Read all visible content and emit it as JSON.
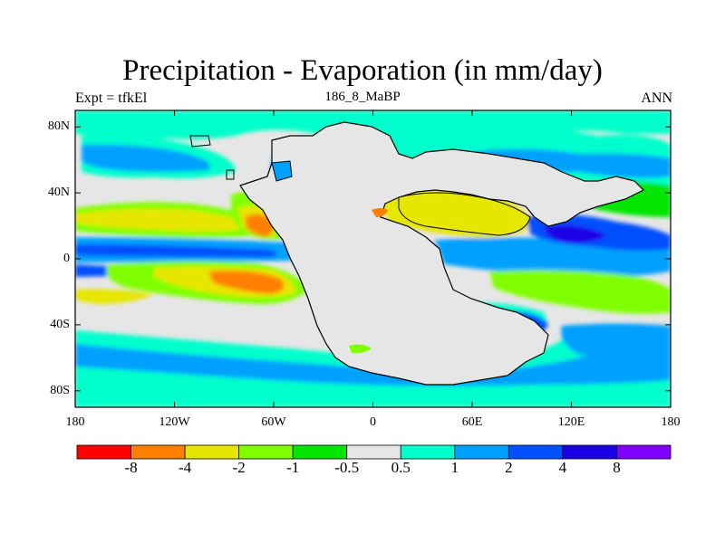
{
  "header": {
    "title": "Precipitation - Evaporation (in mm/day)",
    "left_label": "Expt = tfkEl",
    "center_label": "186_8_MaBP",
    "right_label": "ANN"
  },
  "map": {
    "projection": "cylindrical-equidistant",
    "lon_range": [
      -180,
      180
    ],
    "lat_range": [
      -90,
      90
    ],
    "lat_ticks": [
      {
        "value": 80,
        "label": "80N"
      },
      {
        "value": 40,
        "label": "40N"
      },
      {
        "value": 0,
        "label": "0"
      },
      {
        "value": -40,
        "label": "40S"
      },
      {
        "value": -80,
        "label": "80S"
      }
    ],
    "lon_ticks": [
      {
        "value": -180,
        "label": "180"
      },
      {
        "value": -120,
        "label": "120W"
      },
      {
        "value": -60,
        "label": "60W"
      },
      {
        "value": 0,
        "label": "0"
      },
      {
        "value": 60,
        "label": "60E"
      },
      {
        "value": 120,
        "label": "120E"
      },
      {
        "value": 180,
        "label": "180"
      }
    ],
    "background_color": "#e6e6e6",
    "coastline_color": "#000000"
  },
  "colorbar": {
    "colors": [
      "#ff0000",
      "#ff8000",
      "#e6e600",
      "#80ff00",
      "#00e600",
      "#e6e6e6",
      "#00ffcc",
      "#00a0ff",
      "#0050ff",
      "#1a00e6",
      "#8000ff"
    ],
    "labels": [
      "-8",
      "-4",
      "-2",
      "-1",
      "-0.5",
      "0.5",
      "1",
      "2",
      "4",
      "8"
    ]
  },
  "chart_data": {
    "type": "heatmap",
    "title": "Precipitation - Evaporation (in mm/day)",
    "subtitle": "186_8_MaBP",
    "levels": [
      -8,
      -4,
      -2,
      -1,
      -0.5,
      0.5,
      1,
      2,
      4,
      8
    ],
    "xlim": [
      -180,
      180
    ],
    "ylim": [
      -90,
      90
    ]
  }
}
